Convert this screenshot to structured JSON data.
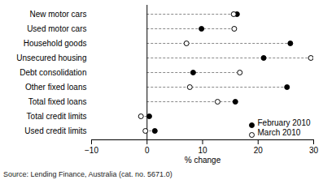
{
  "chart_data": {
    "type": "dot",
    "orientation": "horizontal",
    "categories": [
      "New motor cars",
      "Used motor cars",
      "Household goods",
      "Unsecured housing",
      "Debt consolidation",
      "Other fixed loans",
      "Total fixed loans",
      "Total credit limits",
      "Used credit limits"
    ],
    "series": [
      {
        "name": "February 2010",
        "color": "#000000",
        "marker": "circle",
        "values": [
          16.2,
          9.8,
          25.8,
          21.0,
          8.3,
          25.2,
          15.9,
          0.4,
          1.4
        ]
      },
      {
        "name": "March 2010",
        "color": "#000000",
        "marker": "open_circle",
        "values": [
          15.6,
          15.7,
          7.1,
          29.5,
          16.7,
          7.7,
          12.7,
          -1.1,
          -0.3
        ]
      }
    ],
    "xlabel": "% change",
    "xlim": [
      -10,
      30
    ],
    "xticks": [
      -10,
      0,
      10,
      20,
      30
    ],
    "line_style": "dashed",
    "legend": "bottom-right",
    "caption": "Source: Lending Finance, Australia (cat. no. 5671.0)"
  }
}
